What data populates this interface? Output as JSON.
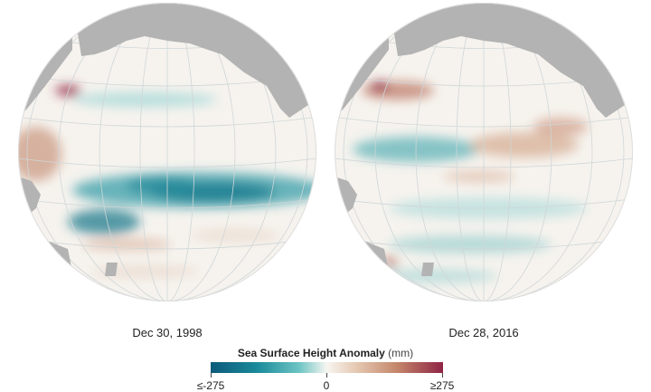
{
  "maps": [
    {
      "date": "Dec 30, 1998"
    },
    {
      "date": "Dec 28, 2016"
    }
  ],
  "legend": {
    "title": "Sea Surface Height Anomaly",
    "unit": "(mm)",
    "min_label": "≤-275",
    "mid_label": "0",
    "max_label": "≥275",
    "colors": {
      "negative_strong": "#0d5a7a",
      "negative_mid": "#1a8a9a",
      "neutral": "#f7f5f0",
      "positive_mid": "#c4876a",
      "positive_strong": "#8f2445",
      "land": "#b3b3b3"
    }
  }
}
